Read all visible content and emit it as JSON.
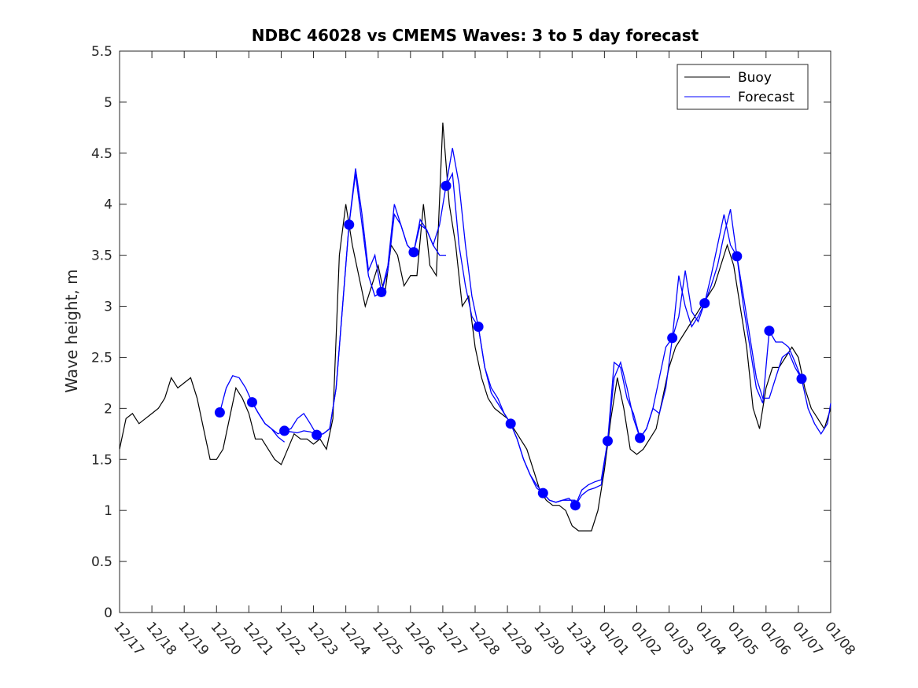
{
  "chart_data": {
    "type": "line",
    "title": "NDBC 46028 vs CMEMS Waves: 3 to 5 day forecast",
    "xlabel": "",
    "ylabel": "Wave height, m",
    "xlim": [
      0,
      22
    ],
    "ylim": [
      0,
      5.5
    ],
    "y_ticks": [
      0,
      0.5,
      1,
      1.5,
      2,
      2.5,
      3,
      3.5,
      4,
      4.5,
      5,
      5.5
    ],
    "y_tick_labels": [
      "0",
      "0.5",
      "1",
      "1.5",
      "2",
      "2.5",
      "3",
      "3.5",
      "4",
      "4.5",
      "5",
      "5.5"
    ],
    "x_ticks": [
      0,
      1,
      2,
      3,
      4,
      5,
      6,
      7,
      8,
      9,
      10,
      11,
      12,
      13,
      14,
      15,
      16,
      17,
      18,
      19,
      20,
      21,
      22
    ],
    "x_tick_labels": [
      "12/17",
      "12/18",
      "12/19",
      "12/20",
      "12/21",
      "12/22",
      "12/23",
      "12/24",
      "12/25",
      "12/26",
      "12/27",
      "12/28",
      "12/29",
      "12/30",
      "12/31",
      "01/01",
      "01/02",
      "01/03",
      "01/04",
      "01/05",
      "01/06",
      "01/07",
      "01/08"
    ],
    "grid": false,
    "legend_position": "top-right",
    "legend": [
      "Buoy",
      "Forecast"
    ],
    "colors": {
      "buoy": "#000000",
      "forecast": "#0000ff",
      "axis": "#262626"
    },
    "series": [
      {
        "name": "Buoy",
        "x": [
          0,
          0.2,
          0.4,
          0.6,
          0.8,
          1.0,
          1.2,
          1.4,
          1.6,
          1.8,
          2.0,
          2.2,
          2.4,
          2.6,
          2.8,
          3.0,
          3.2,
          3.4,
          3.6,
          3.8,
          4.0,
          4.2,
          4.4,
          4.6,
          4.8,
          5.0,
          5.2,
          5.4,
          5.6,
          5.8,
          6.0,
          6.2,
          6.4,
          6.6,
          6.8,
          7.0,
          7.2,
          7.4,
          7.6,
          7.8,
          8.0,
          8.2,
          8.4,
          8.6,
          8.8,
          9.0,
          9.2,
          9.4,
          9.6,
          9.8,
          10.0,
          10.2,
          10.4,
          10.6,
          10.8,
          11.0,
          11.2,
          11.4,
          11.6,
          11.8,
          12.0,
          12.2,
          12.4,
          12.6,
          12.8,
          13.0,
          13.2,
          13.4,
          13.6,
          13.8,
          14.0,
          14.2,
          14.4,
          14.6,
          14.8,
          15.0,
          15.2,
          15.4,
          15.6,
          15.8,
          16.0,
          16.2,
          16.4,
          16.6,
          16.8,
          17.0,
          17.2,
          17.4,
          17.6,
          17.8,
          18.0,
          18.2,
          18.4,
          18.6,
          18.8,
          19.0,
          19.2,
          19.4,
          19.6,
          19.8,
          20.0,
          20.2,
          20.4,
          20.6,
          20.8,
          21.0,
          21.2,
          21.4,
          21.6,
          21.8,
          22.0
        ],
        "values": [
          1.6,
          1.9,
          1.95,
          1.85,
          1.9,
          1.95,
          2.0,
          2.1,
          2.3,
          2.2,
          2.25,
          2.3,
          2.1,
          1.8,
          1.5,
          1.5,
          1.6,
          1.9,
          2.2,
          2.1,
          1.95,
          1.7,
          1.7,
          1.6,
          1.5,
          1.45,
          1.6,
          1.75,
          1.7,
          1.7,
          1.65,
          1.7,
          1.6,
          1.9,
          3.5,
          4.0,
          3.6,
          3.3,
          3.0,
          3.2,
          3.4,
          3.1,
          3.6,
          3.5,
          3.2,
          3.3,
          3.3,
          4.0,
          3.4,
          3.3,
          4.8,
          4.0,
          3.6,
          3.0,
          3.1,
          2.6,
          2.3,
          2.1,
          2.0,
          1.95,
          1.9,
          1.8,
          1.7,
          1.6,
          1.4,
          1.2,
          1.1,
          1.05,
          1.05,
          1.0,
          0.85,
          0.8,
          0.8,
          0.8,
          1.0,
          1.4,
          1.9,
          2.3,
          2.0,
          1.6,
          1.55,
          1.6,
          1.7,
          1.8,
          2.1,
          2.4,
          2.6,
          2.7,
          2.8,
          2.9,
          3.0,
          3.1,
          3.2,
          3.4,
          3.6,
          3.4,
          3.0,
          2.6,
          2.0,
          1.8,
          2.2,
          2.4,
          2.4,
          2.5,
          2.6,
          2.5,
          2.2,
          2.0,
          1.9,
          1.8,
          2.0
        ]
      },
      {
        "name": "Forecast",
        "segments": [
          {
            "x": [
              3.1,
              3.3,
              3.5,
              3.7,
              3.9,
              4.1,
              4.3,
              4.5,
              4.7,
              4.9,
              5.1
            ],
            "values": [
              1.96,
              2.2,
              2.32,
              2.3,
              2.2,
              2.06,
              1.95,
              1.85,
              1.8,
              1.72,
              1.67
            ]
          },
          {
            "x": [
              4.1,
              4.3,
              4.5,
              4.7,
              4.9,
              5.1,
              5.3,
              5.5,
              5.7,
              5.9,
              6.1
            ],
            "values": [
              2.06,
              1.95,
              1.85,
              1.8,
              1.75,
              1.78,
              1.8,
              1.9,
              1.95,
              1.85,
              1.74
            ]
          },
          {
            "x": [
              5.1,
              5.3,
              5.5,
              5.7,
              5.9,
              6.1,
              6.3,
              6.5,
              6.7,
              6.9,
              7.1
            ],
            "values": [
              1.78,
              1.77,
              1.76,
              1.78,
              1.77,
              1.74,
              1.75,
              1.8,
              2.2,
              3.0,
              3.8
            ]
          },
          {
            "x": [
              6.1,
              6.3,
              6.5,
              6.7,
              6.9,
              7.1,
              7.3,
              7.5,
              7.7,
              7.9,
              8.1
            ],
            "values": [
              1.74,
              1.75,
              1.8,
              2.2,
              3.0,
              3.8,
              4.3,
              3.8,
              3.3,
              3.1,
              3.14
            ]
          },
          {
            "x": [
              7.1,
              7.3,
              7.5,
              7.7,
              7.9,
              8.1,
              8.3,
              8.5,
              8.7,
              8.9,
              9.1
            ],
            "values": [
              3.8,
              4.35,
              3.9,
              3.35,
              3.5,
              3.14,
              3.4,
              4.0,
              3.8,
              3.6,
              3.53
            ]
          },
          {
            "x": [
              8.1,
              8.3,
              8.5,
              8.7,
              8.9,
              9.1,
              9.3,
              9.5,
              9.7,
              9.9,
              10.1
            ],
            "values": [
              3.14,
              3.35,
              3.9,
              3.8,
              3.6,
              3.53,
              3.8,
              3.75,
              3.6,
              3.5,
              3.5
            ]
          },
          {
            "x": [
              9.1,
              9.3,
              9.5,
              9.7,
              9.9,
              10.1,
              10.3,
              10.5,
              10.7,
              10.9,
              11.1
            ],
            "values": [
              3.53,
              3.85,
              3.75,
              3.6,
              3.8,
              4.18,
              4.55,
              4.2,
              3.6,
              3.1,
              2.8
            ]
          },
          {
            "x": [
              10.1,
              10.3,
              10.5,
              10.7,
              10.9,
              11.1,
              11.3,
              11.5,
              11.7,
              11.9,
              12.1
            ],
            "values": [
              4.18,
              4.3,
              3.6,
              3.2,
              2.9,
              2.8,
              2.4,
              2.2,
              2.1,
              1.95,
              1.85
            ]
          },
          {
            "x": [
              11.1,
              11.3,
              11.5,
              11.7,
              11.9,
              12.1,
              12.3,
              12.5,
              12.7,
              12.9,
              13.1
            ],
            "values": [
              2.8,
              2.4,
              2.15,
              2.05,
              1.95,
              1.85,
              1.7,
              1.5,
              1.35,
              1.25,
              1.17
            ]
          },
          {
            "x": [
              12.1,
              12.3,
              12.5,
              12.7,
              12.9,
              13.1,
              13.3,
              13.5,
              13.7,
              13.9,
              14.1
            ],
            "values": [
              1.85,
              1.7,
              1.5,
              1.35,
              1.22,
              1.17,
              1.1,
              1.08,
              1.1,
              1.1,
              1.1
            ]
          },
          {
            "x": [
              13.1,
              13.3,
              13.5,
              13.7,
              13.9,
              14.1,
              14.3,
              14.5,
              14.7,
              14.9,
              15.1
            ],
            "values": [
              1.17,
              1.1,
              1.08,
              1.1,
              1.12,
              1.05,
              1.15,
              1.2,
              1.22,
              1.25,
              1.68
            ]
          },
          {
            "x": [
              14.1,
              14.3,
              14.5,
              14.7,
              14.9,
              15.1,
              15.3,
              15.5,
              15.7,
              15.9,
              16.1
            ],
            "values": [
              1.05,
              1.2,
              1.25,
              1.28,
              1.3,
              1.68,
              2.45,
              2.4,
              2.1,
              1.95,
              1.71
            ]
          },
          {
            "x": [
              15.1,
              15.3,
              15.5,
              15.7,
              15.9,
              16.1,
              16.3,
              16.5,
              16.7,
              16.9,
              17.1
            ],
            "values": [
              1.68,
              2.3,
              2.45,
              2.2,
              1.9,
              1.71,
              1.8,
              2.0,
              1.95,
              2.2,
              2.69
            ]
          },
          {
            "x": [
              16.1,
              16.3,
              16.5,
              16.7,
              16.9,
              17.1,
              17.3,
              17.5,
              17.7,
              17.9,
              18.1
            ],
            "values": [
              1.71,
              1.8,
              2.0,
              2.3,
              2.6,
              2.69,
              3.3,
              3.0,
              2.8,
              2.9,
              3.03
            ]
          },
          {
            "x": [
              17.1,
              17.3,
              17.5,
              17.7,
              17.9,
              18.1,
              18.3,
              18.5,
              18.7,
              18.9,
              19.1
            ],
            "values": [
              2.69,
              2.9,
              3.35,
              2.95,
              2.85,
              3.03,
              3.2,
              3.4,
              3.7,
              3.95,
              3.49
            ]
          },
          {
            "x": [
              18.1,
              18.3,
              18.5,
              18.7,
              18.9,
              19.1,
              19.3,
              19.5,
              19.7,
              19.9,
              20.1
            ],
            "values": [
              3.03,
              3.3,
              3.6,
              3.9,
              3.6,
              3.49,
              3.0,
              2.6,
              2.2,
              2.05,
              2.76
            ]
          },
          {
            "x": [
              19.1,
              19.3,
              19.5,
              19.7,
              19.9,
              20.1,
              20.3,
              20.5,
              20.7,
              20.9,
              21.1
            ],
            "values": [
              3.49,
              3.1,
              2.7,
              2.3,
              2.1,
              2.1,
              2.3,
              2.5,
              2.55,
              2.4,
              2.29
            ]
          },
          {
            "x": [
              20.1,
              20.3,
              20.5,
              20.7,
              20.9,
              21.1,
              21.3,
              21.5,
              21.7,
              21.9,
              22.0
            ],
            "values": [
              2.76,
              2.65,
              2.65,
              2.6,
              2.45,
              2.29,
              2.0,
              1.85,
              1.75,
              1.85,
              2.05
            ]
          }
        ],
        "markers": {
          "x": [
            3.1,
            4.1,
            5.1,
            6.1,
            7.1,
            8.1,
            9.1,
            10.1,
            11.1,
            12.1,
            13.1,
            14.1,
            15.1,
            16.1,
            17.1,
            18.1,
            19.1,
            20.1,
            21.1
          ],
          "values": [
            1.96,
            2.06,
            1.78,
            1.74,
            3.8,
            3.14,
            3.53,
            4.18,
            2.8,
            1.85,
            1.17,
            1.05,
            1.68,
            1.71,
            2.69,
            3.03,
            3.49,
            2.76,
            2.29
          ]
        }
      }
    ]
  }
}
